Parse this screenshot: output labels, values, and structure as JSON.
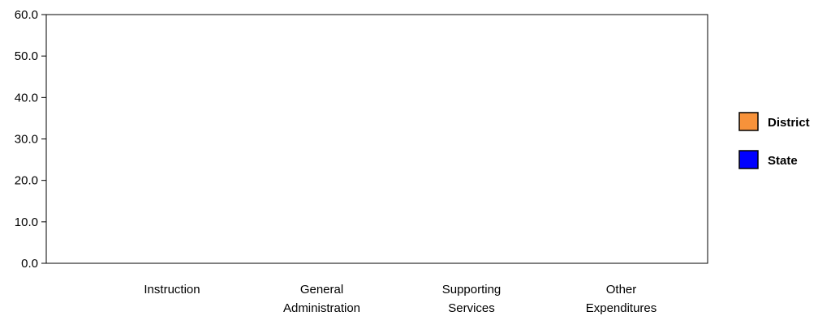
{
  "chart_data": {
    "type": "bar",
    "title": "",
    "xlabel": "",
    "ylabel": "",
    "ylim": [
      0,
      60
    ],
    "yticks": [
      "0.0",
      "10.0",
      "20.0",
      "30.0",
      "40.0",
      "50.0",
      "60.0"
    ],
    "categories": [
      [
        "Instruction"
      ],
      [
        "General",
        "Administration"
      ],
      [
        "Supporting",
        "Services"
      ],
      [
        "Other",
        "Expenditures"
      ]
    ],
    "series": [
      {
        "name": "District",
        "color": "#f7923a",
        "values": [
          0,
          0,
          0,
          0
        ]
      },
      {
        "name": "State",
        "color": "#0000ff",
        "values": [
          0,
          0,
          0,
          0
        ]
      }
    ],
    "grid": false,
    "legend_position": "right"
  }
}
